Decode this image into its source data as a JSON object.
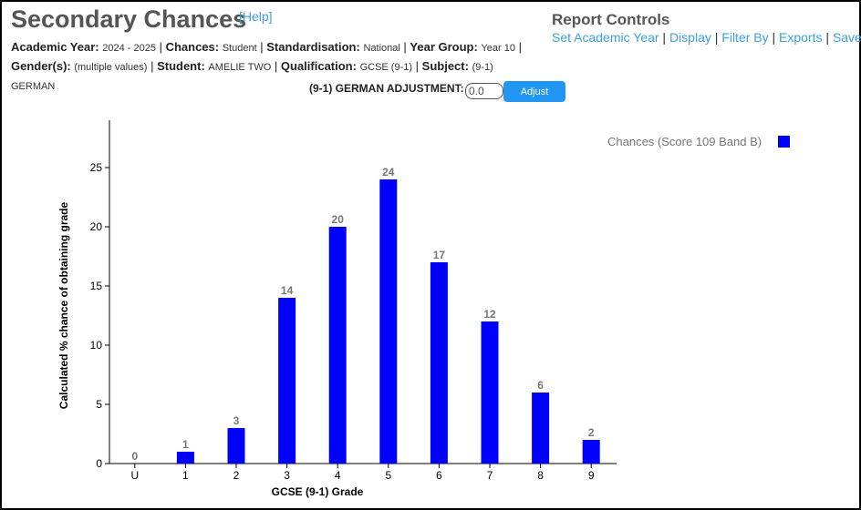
{
  "page": {
    "title": "Secondary Chances",
    "help_label": "[Help]"
  },
  "filters": {
    "academic_year_label": "Academic Year:",
    "academic_year_value": "2024 - 2025",
    "chances_label": "Chances:",
    "chances_value": "Student",
    "standardisation_label": "Standardisation:",
    "standardisation_value": "National",
    "year_group_label": "Year Group:",
    "year_group_value": "Year 10",
    "gender_label": "Gender(s):",
    "gender_value": "(multiple values)",
    "student_label": "Student:",
    "student_value": "AMELIE TWO",
    "qualification_label": "Qualification:",
    "qualification_value": "GCSE (9-1)",
    "subject_label": "Subject:",
    "subject_value": "(9-1) GERMAN"
  },
  "report_controls": {
    "title": "Report Controls",
    "links": [
      "Set Academic Year",
      "Display",
      "Filter By",
      "Exports",
      "Save"
    ]
  },
  "adjustment": {
    "label": "(9-1) GERMAN ADJUSTMENT:",
    "value": "0.0",
    "button_label": "Adjust",
    "button_color": "#2196f3"
  },
  "chart_data": {
    "type": "bar",
    "categories": [
      "U",
      "1",
      "2",
      "3",
      "4",
      "5",
      "6",
      "7",
      "8",
      "9"
    ],
    "series": [
      {
        "name": "Chances (Score 109 Band B)",
        "values": [
          0,
          1,
          3,
          14,
          20,
          24,
          17,
          12,
          6,
          2
        ],
        "color": "#0000ff"
      }
    ],
    "xlabel": "GCSE (9-1) Grade",
    "ylabel": "Calculated % chance of obtaining grade",
    "ylim": [
      0,
      29
    ],
    "yticks": [
      0,
      5,
      10,
      15,
      20,
      25
    ],
    "data_labels": [
      "0",
      "1",
      "3",
      "14",
      "20",
      "24",
      "17",
      "12",
      "6",
      "2"
    ],
    "grid": false,
    "legend_position": "top-right"
  }
}
